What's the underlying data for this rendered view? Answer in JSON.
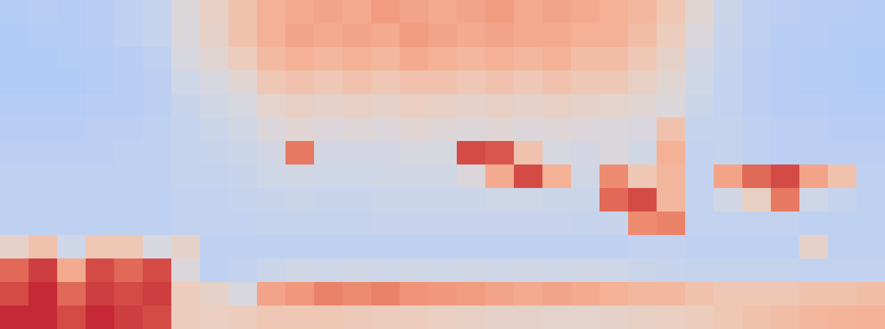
{
  "chart_data": {
    "type": "heatmap",
    "tick_labels": false,
    "zlim": [
      0,
      1
    ],
    "cells": [
      [
        0.37,
        0.38,
        0.37,
        0.38,
        0.4,
        0.42,
        0.5,
        0.56,
        0.62,
        0.68,
        0.7,
        0.72,
        0.7,
        0.74,
        0.72,
        0.7,
        0.72,
        0.74,
        0.7,
        0.72,
        0.7,
        0.68,
        0.66,
        0.6,
        0.52,
        0.44,
        0.4,
        0.39,
        0.38,
        0.38,
        0.37
      ],
      [
        0.36,
        0.37,
        0.37,
        0.38,
        0.4,
        0.42,
        0.5,
        0.55,
        0.62,
        0.68,
        0.72,
        0.7,
        0.72,
        0.7,
        0.74,
        0.72,
        0.7,
        0.72,
        0.7,
        0.7,
        0.68,
        0.68,
        0.64,
        0.58,
        0.5,
        0.43,
        0.4,
        0.38,
        0.38,
        0.37,
        0.37
      ],
      [
        0.36,
        0.36,
        0.37,
        0.37,
        0.38,
        0.4,
        0.48,
        0.52,
        0.58,
        0.65,
        0.68,
        0.66,
        0.68,
        0.66,
        0.7,
        0.68,
        0.66,
        0.68,
        0.66,
        0.68,
        0.64,
        0.64,
        0.6,
        0.55,
        0.47,
        0.42,
        0.39,
        0.38,
        0.37,
        0.37,
        0.36
      ],
      [
        0.36,
        0.36,
        0.36,
        0.37,
        0.38,
        0.39,
        0.45,
        0.48,
        0.52,
        0.6,
        0.62,
        0.6,
        0.62,
        0.6,
        0.62,
        0.62,
        0.6,
        0.62,
        0.6,
        0.62,
        0.6,
        0.6,
        0.56,
        0.52,
        0.45,
        0.41,
        0.39,
        0.38,
        0.37,
        0.37,
        0.36
      ],
      [
        0.37,
        0.37,
        0.37,
        0.38,
        0.38,
        0.39,
        0.43,
        0.46,
        0.48,
        0.54,
        0.56,
        0.55,
        0.56,
        0.55,
        0.57,
        0.56,
        0.55,
        0.56,
        0.55,
        0.56,
        0.55,
        0.54,
        0.52,
        0.5,
        0.44,
        0.41,
        0.39,
        0.38,
        0.38,
        0.37,
        0.37
      ],
      [
        0.38,
        0.38,
        0.38,
        0.39,
        0.39,
        0.4,
        0.42,
        0.44,
        0.46,
        0.5,
        0.52,
        0.5,
        0.51,
        0.5,
        0.52,
        0.51,
        0.5,
        0.52,
        0.5,
        0.51,
        0.5,
        0.5,
        0.49,
        0.62,
        0.42,
        0.42,
        0.4,
        0.39,
        0.39,
        0.38,
        0.38
      ],
      [
        0.39,
        0.39,
        0.39,
        0.39,
        0.4,
        0.4,
        0.42,
        0.43,
        0.44,
        0.47,
        0.82,
        0.47,
        0.47,
        0.47,
        0.48,
        0.48,
        0.9,
        0.88,
        0.62,
        0.48,
        0.47,
        0.5,
        0.46,
        0.68,
        0.41,
        0.42,
        0.4,
        0.39,
        0.39,
        0.39,
        0.39
      ],
      [
        0.4,
        0.4,
        0.4,
        0.4,
        0.4,
        0.4,
        0.42,
        0.42,
        0.43,
        0.45,
        0.46,
        0.45,
        0.45,
        0.46,
        0.46,
        0.46,
        0.5,
        0.7,
        0.9,
        0.68,
        0.46,
        0.78,
        0.6,
        0.66,
        0.41,
        0.72,
        0.85,
        0.9,
        0.72,
        0.62,
        0.4
      ],
      [
        0.4,
        0.4,
        0.4,
        0.4,
        0.4,
        0.4,
        0.41,
        0.41,
        0.42,
        0.43,
        0.44,
        0.43,
        0.43,
        0.44,
        0.44,
        0.44,
        0.44,
        0.45,
        0.45,
        0.44,
        0.44,
        0.85,
        0.9,
        0.66,
        0.41,
        0.46,
        0.56,
        0.82,
        0.45,
        0.42,
        0.4
      ],
      [
        0.4,
        0.4,
        0.4,
        0.4,
        0.4,
        0.4,
        0.41,
        0.41,
        0.41,
        0.42,
        0.42,
        0.42,
        0.42,
        0.43,
        0.43,
        0.43,
        0.43,
        0.43,
        0.43,
        0.43,
        0.42,
        0.43,
        0.78,
        0.8,
        0.41,
        0.41,
        0.41,
        0.41,
        0.4,
        0.4,
        0.4
      ],
      [
        0.55,
        0.62,
        0.45,
        0.6,
        0.6,
        0.48,
        0.55,
        0.4,
        0.4,
        0.4,
        0.4,
        0.4,
        0.4,
        0.4,
        0.4,
        0.4,
        0.4,
        0.4,
        0.4,
        0.4,
        0.4,
        0.4,
        0.41,
        0.41,
        0.4,
        0.4,
        0.4,
        0.4,
        0.55,
        0.4,
        0.4
      ],
      [
        0.85,
        0.92,
        0.7,
        0.9,
        0.85,
        0.9,
        0.5,
        0.4,
        0.41,
        0.44,
        0.46,
        0.45,
        0.46,
        0.45,
        0.46,
        0.45,
        0.46,
        0.45,
        0.46,
        0.45,
        0.46,
        0.45,
        0.44,
        0.43,
        0.42,
        0.42,
        0.42,
        0.42,
        0.41,
        0.41,
        0.41
      ],
      [
        0.9,
        0.95,
        0.85,
        0.92,
        0.9,
        0.92,
        0.58,
        0.55,
        0.48,
        0.72,
        0.75,
        0.8,
        0.78,
        0.8,
        0.76,
        0.75,
        0.74,
        0.72,
        0.7,
        0.72,
        0.7,
        0.68,
        0.66,
        0.66,
        0.62,
        0.6,
        0.6,
        0.6,
        0.62,
        0.62,
        0.64
      ],
      [
        0.95,
        0.95,
        0.9,
        0.95,
        0.92,
        0.9,
        0.58,
        0.57,
        0.58,
        0.6,
        0.6,
        0.6,
        0.59,
        0.58,
        0.58,
        0.57,
        0.56,
        0.55,
        0.55,
        0.54,
        0.54,
        0.55,
        0.56,
        0.57,
        0.58,
        0.6,
        0.62,
        0.64,
        0.66,
        0.67,
        0.68
      ]
    ]
  }
}
